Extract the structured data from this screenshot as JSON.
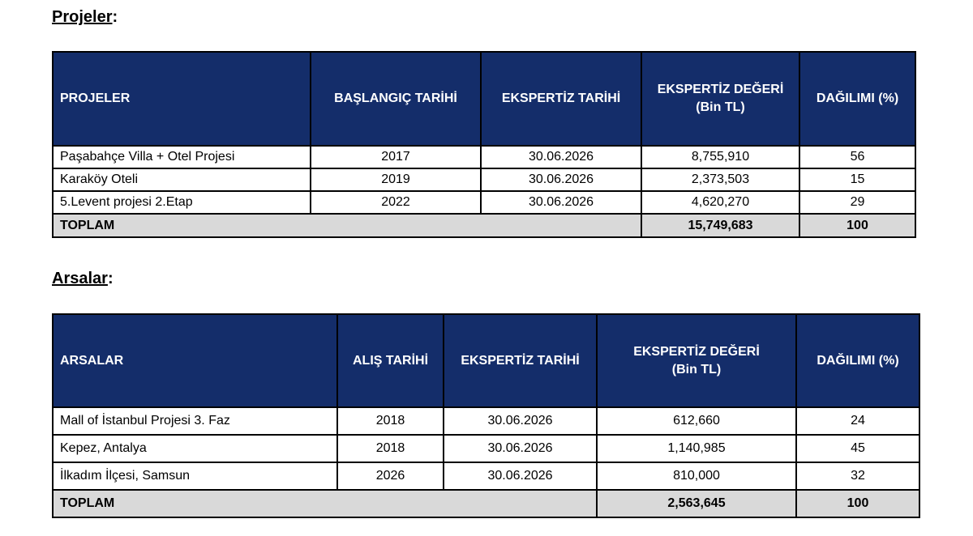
{
  "projects": {
    "section_title": "Projeler",
    "section_colon": ":",
    "headers": {
      "name": "PROJELER",
      "start_date": "BAŞLANGIÇ TARİHİ",
      "appraisal_date": "EKSPERTİZ TARİHİ",
      "appraisal_value": "EKSPERTİZ DEĞERİ",
      "appraisal_value_unit": "(Bin TL)",
      "share": "DAĞILIMI (%)"
    },
    "rows": [
      {
        "name": "Paşabahçe Villa + Otel Projesi",
        "start_date": "2017",
        "appraisal_date": "30.06.2026",
        "appraisal_value": "8,755,910",
        "share": "56"
      },
      {
        "name": "Karaköy Oteli",
        "start_date": "2019",
        "appraisal_date": "30.06.2026",
        "appraisal_value": "2,373,503",
        "share": "15"
      },
      {
        "name": "5.Levent projesi 2.Etap",
        "start_date": "2022",
        "appraisal_date": "30.06.2026",
        "appraisal_value": "4,620,270",
        "share": "29"
      }
    ],
    "total": {
      "label": "TOPLAM",
      "appraisal_value": "15,749,683",
      "share": "100"
    }
  },
  "lands": {
    "section_title": "Arsalar",
    "section_colon": ":",
    "headers": {
      "name": "ARSALAR",
      "purchase_date": "ALIŞ TARİHİ",
      "appraisal_date": "EKSPERTİZ TARİHİ",
      "appraisal_value": "EKSPERTİZ DEĞERİ",
      "appraisal_value_unit": "(Bin TL)",
      "share": "DAĞILIMI (%)"
    },
    "rows": [
      {
        "name": "Mall of İstanbul Projesi 3. Faz",
        "purchase_date": "2018",
        "appraisal_date": "30.06.2026",
        "appraisal_value": "612,660",
        "share": "24"
      },
      {
        "name": "Kepez, Antalya",
        "purchase_date": "2018",
        "appraisal_date": "30.06.2026",
        "appraisal_value": "1,140,985",
        "share": "45"
      },
      {
        "name": "İlkadım İlçesi, Samsun",
        "purchase_date": "2026",
        "appraisal_date": "30.06.2026",
        "appraisal_value": "810,000",
        "share": "32"
      }
    ],
    "total": {
      "label": "TOPLAM",
      "appraisal_value": "2,563,645",
      "share": "100"
    }
  },
  "colors": {
    "header_bg": "#142d6a",
    "header_text": "#ffffff",
    "total_bg": "#d9d9d9"
  }
}
